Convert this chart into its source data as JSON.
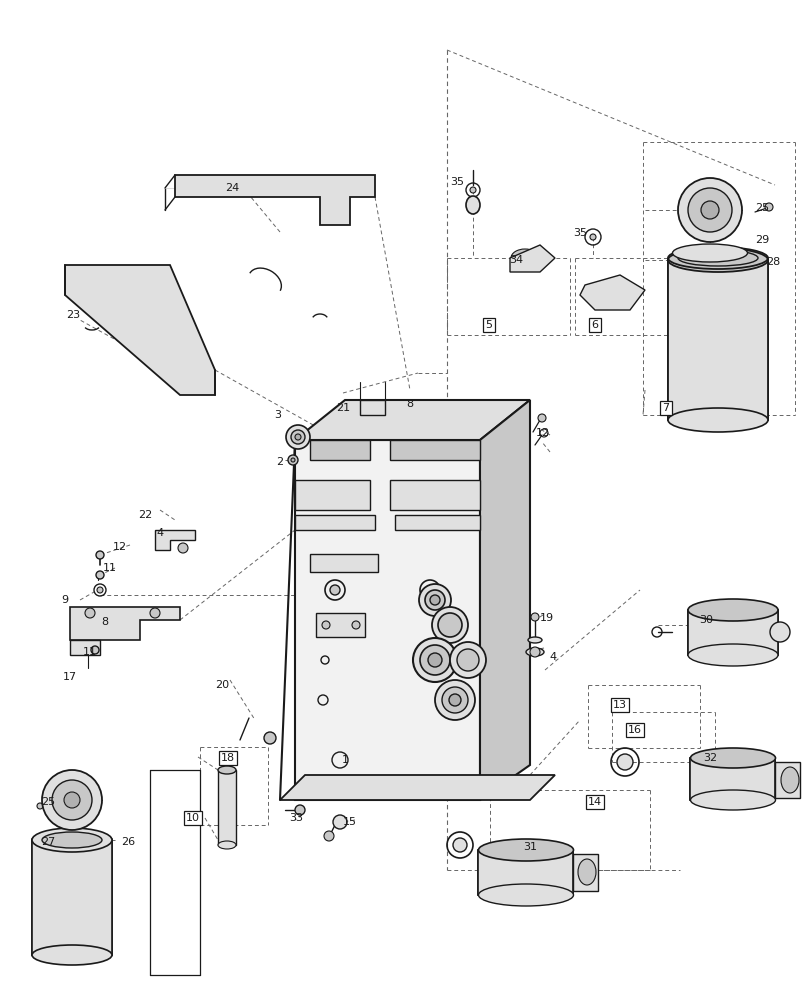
{
  "bg_color": "#ffffff",
  "lc": "#1a1a1a",
  "dc": "#666666",
  "gray1": "#f2f2f2",
  "gray2": "#e0e0e0",
  "gray3": "#c8c8c8",
  "gray4": "#b0b0b0",
  "figsize": [
    8.12,
    10.0
  ],
  "dpi": 100
}
